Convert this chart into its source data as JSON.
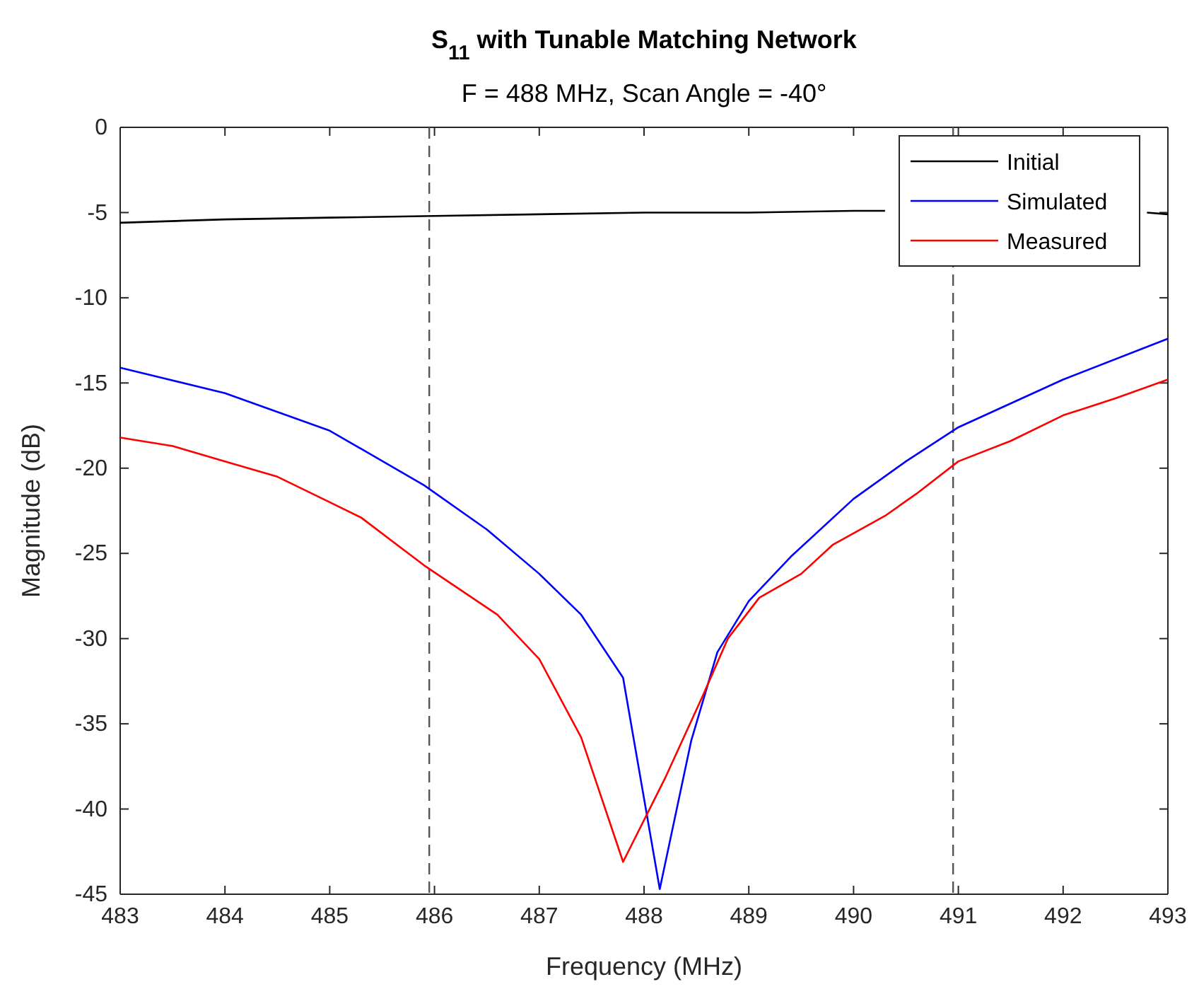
{
  "chart_data": {
    "type": "line",
    "title": "S$_{11}$ with Tunable Matching Network",
    "subtitle": "F = 488 MHz, Scan Angle = -40°",
    "xlabel": "Frequency (MHz)",
    "ylabel": "Magnitude (dB)",
    "xlim": [
      483,
      493
    ],
    "xticks": [
      483,
      484,
      485,
      486,
      487,
      488,
      489,
      490,
      491,
      492,
      493
    ],
    "ylim": [
      -45,
      0
    ],
    "yticks": [
      -45,
      -40,
      -35,
      -30,
      -25,
      -20,
      -15,
      -10,
      -5,
      0
    ],
    "grid": false,
    "legend": "top right",
    "line_style": "solid",
    "marker": "none",
    "ref_lines": [
      {
        "axis": "x",
        "value": 485.95,
        "color": "#555555",
        "line_style": "dashed"
      },
      {
        "axis": "x",
        "value": 490.95,
        "color": "#555555",
        "line_style": "dashed"
      }
    ],
    "series": [
      {
        "name": "Initial",
        "color": "#000000",
        "x": [
          483,
          484,
          485,
          486,
          487,
          488,
          489,
          490,
          490.3,
          491,
          492.8,
          493
        ],
        "values": [
          -5.6,
          -5.4,
          -5.3,
          -5.2,
          -5.1,
          -5.0,
          -5.0,
          -4.9,
          -4.9,
          null,
          -5.0,
          -5.1
        ]
      },
      {
        "name": "Simulated",
        "color": "#0000ff",
        "x": [
          483,
          484,
          485,
          485.9,
          486.5,
          487,
          487.4,
          487.8,
          488.15,
          488.45,
          488.7,
          489,
          489.4,
          490,
          490.5,
          491,
          492,
          493
        ],
        "values": [
          -14.1,
          -15.6,
          -17.8,
          -21,
          -23.6,
          -26.2,
          -28.6,
          -32.3,
          -44.7,
          -36,
          -30.8,
          -27.8,
          -25.2,
          -21.8,
          -19.6,
          -17.6,
          -14.8,
          -12.4
        ]
      },
      {
        "name": "Measured",
        "color": "#ff0000",
        "x": [
          483,
          483.5,
          484,
          484.5,
          485,
          485.3,
          485.9,
          486.6,
          487,
          487.4,
          487.8,
          488.2,
          488.55,
          488.8,
          489.1,
          489.5,
          489.8,
          490.3,
          490.6,
          491,
          491.5,
          492,
          492.5,
          493
        ],
        "values": [
          -18.2,
          -18.7,
          -19.6,
          -20.5,
          -22,
          -22.9,
          -25.7,
          -28.6,
          -31.2,
          -35.8,
          -43.1,
          -38.2,
          -33.5,
          -30,
          -27.6,
          -26.2,
          -24.5,
          -22.8,
          -21.5,
          -19.6,
          -18.4,
          -16.9,
          -15.9,
          -14.8
        ]
      }
    ]
  }
}
